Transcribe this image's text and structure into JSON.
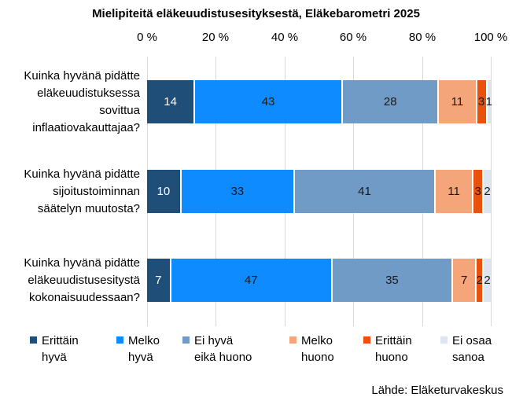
{
  "chart_data": {
    "type": "bar",
    "orientation": "horizontal_stacked",
    "title": "Mielipiteitä eläkeuudistusesityksestä, Eläkebarometri 2025",
    "categories": [
      "Kuinka hyvänä pidätte eläkeuudistuksessa sovittua inflaatiovakauttajaa?",
      "Kuinka hyvänä pidätte sijoitustoiminnan säätelyn muutosta?",
      "Kuinka hyvänä pidätte eläkeuudistusesitystä kokonaisuudessaan?"
    ],
    "category_lines": [
      [
        "Kuinka hyvänä pidätte",
        "eläkeuudistuksessa",
        "sovittua",
        "inflaatiovakauttajaa?"
      ],
      [
        "Kuinka hyvänä pidätte",
        "sijoitustoiminnan",
        "säätelyn muutosta?"
      ],
      [
        "Kuinka hyvänä pidätte",
        "eläkeuudistusesitystä",
        "kokonaisuudessaan?"
      ]
    ],
    "series": [
      {
        "name": "Erittäin hyvä",
        "legend_lines": [
          "Erittäin",
          "hyvä"
        ],
        "color": "#1F4E79",
        "label_color": "#FFFFFF",
        "values": [
          14,
          10,
          7
        ]
      },
      {
        "name": "Melko hyvä",
        "legend_lines": [
          "Melko",
          "hyvä"
        ],
        "color": "#0D8BFF",
        "label_color": "#1A1A1A",
        "values": [
          43,
          33,
          47
        ]
      },
      {
        "name": "Ei hyvä eikä huono",
        "legend_lines": [
          "Ei hyvä",
          "eikä huono"
        ],
        "color": "#6F9BC6",
        "label_color": "#1A1A1A",
        "values": [
          28,
          41,
          35
        ]
      },
      {
        "name": "Melko huono",
        "legend_lines": [
          "Melko",
          "huono"
        ],
        "color": "#F5A57A",
        "label_color": "#1A1A1A",
        "values": [
          11,
          11,
          7
        ]
      },
      {
        "name": "Erittäin huono",
        "legend_lines": [
          "Erittäin",
          "huono"
        ],
        "color": "#E8520C",
        "label_color": "#1A1A1A",
        "values": [
          3,
          3,
          2
        ]
      },
      {
        "name": "Ei osaa sanoa",
        "legend_lines": [
          "Ei osaa",
          "sanoa"
        ],
        "color": "#DCE5F0",
        "label_color": "#1A1A1A",
        "values": [
          1,
          2,
          2
        ]
      }
    ],
    "xlim": [
      0,
      100
    ],
    "x_tick_labels": [
      "0 %",
      "20 %",
      "40 %",
      "60 %",
      "80 %",
      "100 %"
    ],
    "grid": "vertical",
    "legend_position": "bottom",
    "gridline_color": "#D9D9D9",
    "background": "#FFFFFF"
  },
  "footer": {
    "source": "Lähde: Eläketurvakeskus"
  }
}
